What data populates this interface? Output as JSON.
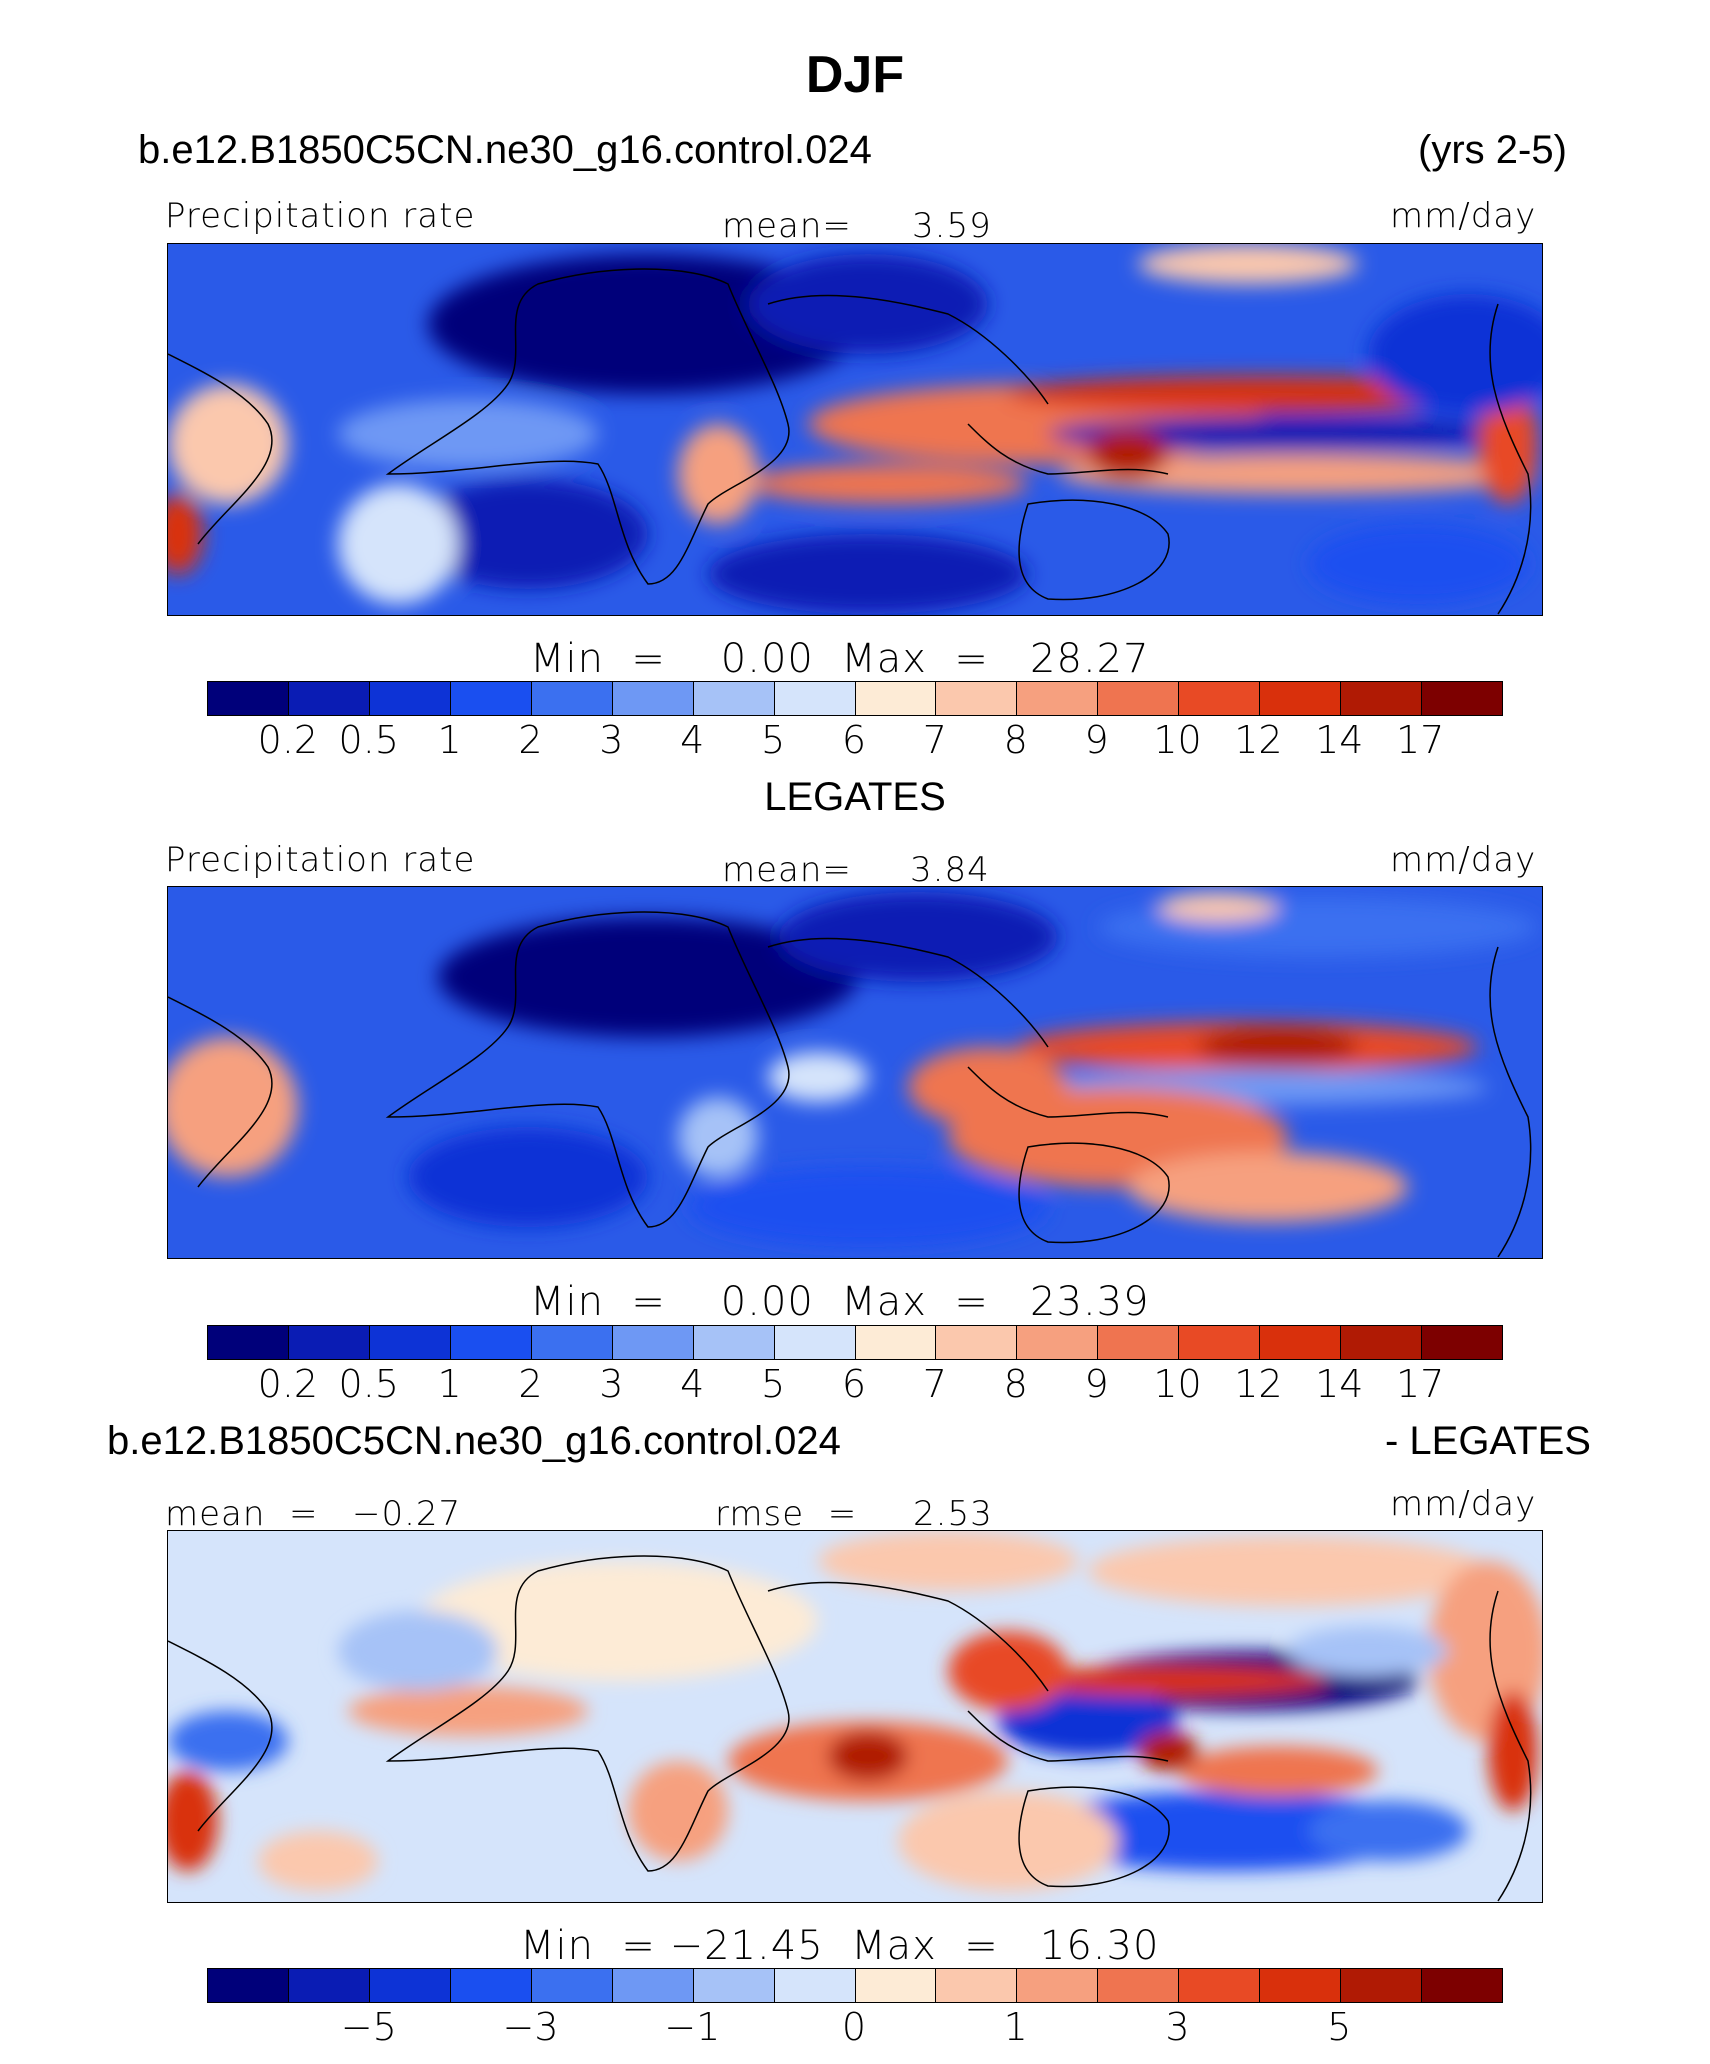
{
  "title": "DJF",
  "header": {
    "case": "b.e12.B1850C5CN.ne30_g16.control.024",
    "years": "(yrs 2-5)"
  },
  "panels": [
    {
      "variable": "Precipitation rate",
      "mean_label": "mean=",
      "mean": "3.59",
      "units": "mm/day",
      "minmax": "Min  =    0.00  Max  =   28.27"
    },
    {
      "title": "LEGATES",
      "variable": "Precipitation rate",
      "mean_label": "mean=",
      "mean": "3.84",
      "units": "mm/day",
      "minmax": "Min  =    0.00  Max  =   23.39"
    },
    {
      "title_left": "b.e12.B1850C5CN.ne30_g16.control.024",
      "title_right": "- LEGATES",
      "mean_label": "mean  =",
      "mean": "−0.27",
      "rmse_label": "rmse  =",
      "rmse": "2.53",
      "units": "mm/day",
      "minmax": "Min  = −21.45  Max  =   16.30"
    }
  ],
  "colorbar_abs": {
    "colors": [
      "#00007a",
      "#0a1cb4",
      "#0d33d6",
      "#1a4ff0",
      "#3b70f0",
      "#6e98f4",
      "#a6c2f7",
      "#d5e4fb",
      "#fdebd6",
      "#fbc8ad",
      "#f6a07f",
      "#ef7450",
      "#e84a25",
      "#d9300c",
      "#b01a04",
      "#7d0000"
    ],
    "labels": [
      "0.2",
      "0.5",
      "1",
      "2",
      "3",
      "4",
      "5",
      "6",
      "7",
      "8",
      "9",
      "10",
      "12",
      "14",
      "17"
    ]
  },
  "colorbar_diff": {
    "colors": [
      "#00007a",
      "#0a1cb4",
      "#0d33d6",
      "#1a4ff0",
      "#3b70f0",
      "#6e98f4",
      "#a6c2f7",
      "#d5e4fb",
      "#fdebd6",
      "#fbc8ad",
      "#f6a07f",
      "#ef7450",
      "#e84a25",
      "#d9300c",
      "#b01a04",
      "#7d0000"
    ],
    "labels": [
      "−5",
      "−3",
      "−1",
      "0",
      "1",
      "3",
      "5"
    ]
  }
}
